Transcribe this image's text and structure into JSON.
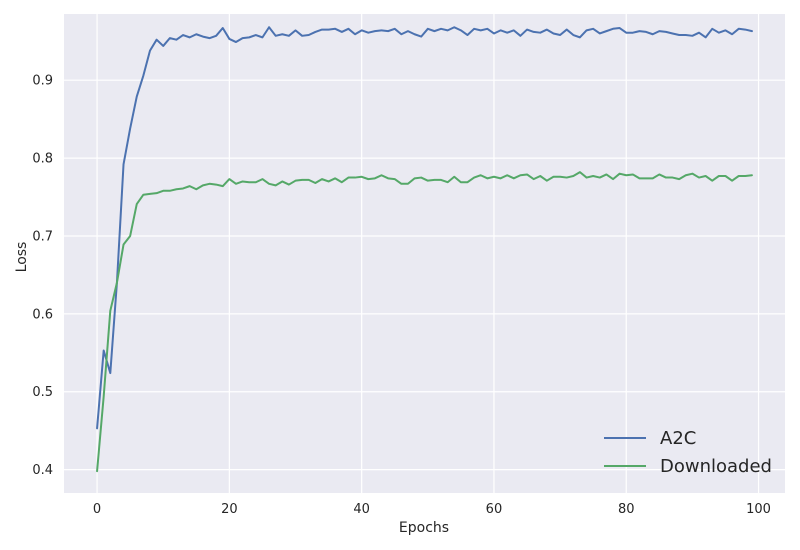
{
  "chart_data": {
    "type": "line",
    "title": "",
    "xlabel": "Epochs",
    "ylabel": "Loss",
    "xlim": [
      -5,
      104
    ],
    "ylim": [
      0.37,
      0.985
    ],
    "xticks": [
      0,
      20,
      40,
      60,
      80,
      100
    ],
    "yticks": [
      0.4,
      0.5,
      0.6,
      0.7,
      0.8,
      0.9
    ],
    "xtick_labels": [
      "0",
      "20",
      "40",
      "60",
      "80",
      "100"
    ],
    "ytick_labels": [
      "0.4",
      "0.5",
      "0.6",
      "0.7",
      "0.8",
      "0.9"
    ],
    "grid": true,
    "background": "#eaeaf2",
    "legend_position": "bottom-right",
    "x": [
      0,
      1,
      2,
      3,
      4,
      5,
      6,
      7,
      8,
      9,
      10,
      11,
      12,
      13,
      14,
      15,
      16,
      17,
      18,
      19,
      20,
      21,
      22,
      23,
      24,
      25,
      26,
      27,
      28,
      29,
      30,
      31,
      32,
      33,
      34,
      35,
      36,
      37,
      38,
      39,
      40,
      41,
      42,
      43,
      44,
      45,
      46,
      47,
      48,
      49,
      50,
      51,
      52,
      53,
      54,
      55,
      56,
      57,
      58,
      59,
      60,
      61,
      62,
      63,
      64,
      65,
      66,
      67,
      68,
      69,
      70,
      71,
      72,
      73,
      74,
      75,
      76,
      77,
      78,
      79,
      80,
      81,
      82,
      83,
      84,
      85,
      86,
      87,
      88,
      89,
      90,
      91,
      92,
      93,
      94,
      95,
      96,
      97,
      98,
      99
    ],
    "series": [
      {
        "name": "A2C",
        "color": "#4c72b0",
        "values": [
          0.453,
          0.553,
          0.524,
          0.64,
          0.792,
          0.838,
          0.879,
          0.906,
          0.938,
          0.952,
          0.944,
          0.954,
          0.952,
          0.958,
          0.955,
          0.959,
          0.956,
          0.954,
          0.957,
          0.967,
          0.953,
          0.949,
          0.954,
          0.955,
          0.958,
          0.955,
          0.968,
          0.957,
          0.959,
          0.957,
          0.964,
          0.957,
          0.958,
          0.962,
          0.965,
          0.965,
          0.966,
          0.962,
          0.966,
          0.959,
          0.964,
          0.961,
          0.963,
          0.964,
          0.963,
          0.966,
          0.959,
          0.963,
          0.959,
          0.956,
          0.966,
          0.963,
          0.966,
          0.964,
          0.968,
          0.964,
          0.958,
          0.966,
          0.964,
          0.966,
          0.96,
          0.964,
          0.961,
          0.964,
          0.957,
          0.965,
          0.962,
          0.961,
          0.965,
          0.96,
          0.958,
          0.965,
          0.958,
          0.955,
          0.964,
          0.966,
          0.96,
          0.963,
          0.966,
          0.967,
          0.961,
          0.961,
          0.963,
          0.962,
          0.959,
          0.963,
          0.962,
          0.96,
          0.958,
          0.958,
          0.957,
          0.961,
          0.955,
          0.966,
          0.961,
          0.964,
          0.959,
          0.966,
          0.965,
          0.963
        ]
      },
      {
        "name": "Downloaded",
        "color": "#55a868",
        "values": [
          0.398,
          0.494,
          0.604,
          0.64,
          0.689,
          0.7,
          0.741,
          0.753,
          0.754,
          0.755,
          0.758,
          0.758,
          0.76,
          0.761,
          0.764,
          0.76,
          0.765,
          0.767,
          0.766,
          0.764,
          0.773,
          0.767,
          0.77,
          0.769,
          0.769,
          0.773,
          0.767,
          0.765,
          0.77,
          0.766,
          0.771,
          0.772,
          0.772,
          0.768,
          0.773,
          0.77,
          0.774,
          0.769,
          0.775,
          0.775,
          0.776,
          0.773,
          0.774,
          0.778,
          0.774,
          0.773,
          0.767,
          0.767,
          0.774,
          0.775,
          0.771,
          0.772,
          0.772,
          0.769,
          0.776,
          0.769,
          0.769,
          0.775,
          0.778,
          0.774,
          0.776,
          0.774,
          0.778,
          0.774,
          0.778,
          0.779,
          0.773,
          0.777,
          0.771,
          0.776,
          0.776,
          0.775,
          0.777,
          0.782,
          0.775,
          0.777,
          0.775,
          0.779,
          0.773,
          0.78,
          0.778,
          0.779,
          0.774,
          0.774,
          0.774,
          0.779,
          0.775,
          0.775,
          0.773,
          0.778,
          0.78,
          0.775,
          0.777,
          0.771,
          0.777,
          0.777,
          0.771,
          0.777,
          0.777,
          0.778
        ]
      }
    ]
  }
}
